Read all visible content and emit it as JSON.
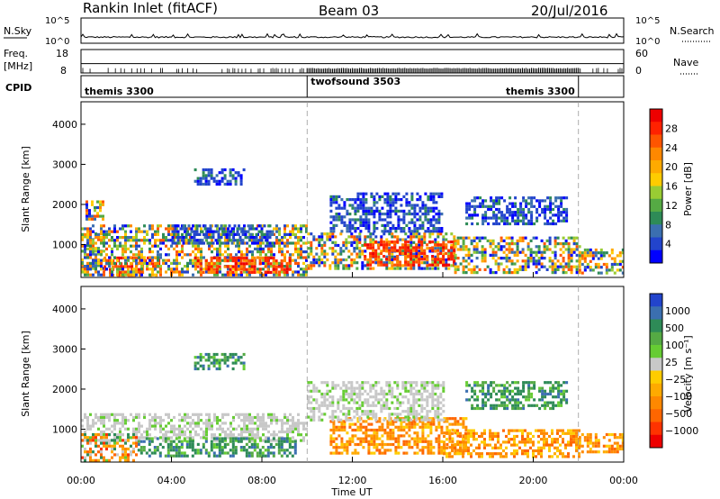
{
  "header": {
    "station": "Rankin Inlet (fitACF)",
    "beam": "Beam 03",
    "date": "20/Jul/2016"
  },
  "noise_panel": {
    "left_label": "N.Sky",
    "right_label": "N.Search",
    "ticks": [
      "10^5",
      "10^0"
    ],
    "right_legend_style": "dotted"
  },
  "freq_panel": {
    "left_label_line1": "Freq.",
    "left_label_line2": "[MHz]",
    "left_ticks": [
      "18",
      "8"
    ],
    "left_range": [
      8,
      18
    ],
    "right_label": "Nave",
    "right_ticks": [
      "60",
      "0"
    ],
    "right_range": [
      0,
      60
    ],
    "right_legend_style": "dotted"
  },
  "cpid_panel": {
    "label": "CPID",
    "segments": [
      {
        "name": "themis 3300",
        "start_hour": 0,
        "end_hour": 10
      },
      {
        "name": "twofsound 3503",
        "start_hour": 10,
        "end_hour": 22
      },
      {
        "name": "themis 3300",
        "start_hour": 22,
        "end_hour": 24
      }
    ]
  },
  "time_axis": {
    "label": "Time UT",
    "ticks": [
      "00:00",
      "04:00",
      "08:00",
      "12:00",
      "16:00",
      "20:00",
      "00:00"
    ],
    "range_hours": [
      0,
      24
    ]
  },
  "chart_data": [
    {
      "type": "heatmap",
      "parameter": "power",
      "ylabel": "Slant Range [km]",
      "yticks": [
        1000,
        2000,
        3000,
        4000
      ],
      "ylim": [
        180,
        4560
      ],
      "x_range_hours": [
        0,
        24
      ],
      "mode_change_hours": [
        10,
        22
      ],
      "colorbar": {
        "label": "Power [dB]",
        "ticks": [
          "4",
          "8",
          "12",
          "16",
          "20",
          "24",
          "28"
        ],
        "colors": [
          "#0000ff",
          "#2244cc",
          "#3b6fb0",
          "#2e8b57",
          "#55aa44",
          "#99cc33",
          "#ffcc00",
          "#ffaa00",
          "#ff8800",
          "#ff5500",
          "#ff2200",
          "#ee0000"
        ],
        "range": [
          0,
          30
        ]
      },
      "regions": [
        {
          "hours": [
            0,
            1.0
          ],
          "range_km": [
            400,
            1300
          ],
          "level": "mixed"
        },
        {
          "hours": [
            0.2,
            1.0
          ],
          "range_km": [
            1600,
            2100
          ],
          "level": "mixed"
        },
        {
          "hours": [
            1.0,
            3.5
          ],
          "range_km": [
            250,
            700
          ],
          "level": "high"
        },
        {
          "hours": [
            0,
            10
          ],
          "range_km": [
            250,
            1500
          ],
          "level": "mixed"
        },
        {
          "hours": [
            5.0,
            7.2
          ],
          "range_km": [
            2500,
            2900
          ],
          "level": "low"
        },
        {
          "hours": [
            5.0,
            9.2
          ],
          "range_km": [
            300,
            700
          ],
          "level": "high"
        },
        {
          "hours": [
            4.0,
            8.5
          ],
          "range_km": [
            1000,
            1500
          ],
          "level": "low"
        },
        {
          "hours": [
            10,
            16.5
          ],
          "range_km": [
            400,
            1300
          ],
          "level": "mixed"
        },
        {
          "hours": [
            12.5,
            16.5
          ],
          "range_km": [
            500,
            1100
          ],
          "level": "high"
        },
        {
          "hours": [
            11,
            16
          ],
          "range_km": [
            1300,
            2300
          ],
          "level": "low"
        },
        {
          "hours": [
            16.5,
            22
          ],
          "range_km": [
            300,
            1200
          ],
          "level": "mixed"
        },
        {
          "hours": [
            17,
            21.5
          ],
          "range_km": [
            1500,
            2200
          ],
          "level": "low"
        },
        {
          "hours": [
            22,
            24
          ],
          "range_km": [
            300,
            900
          ],
          "level": "mixed"
        }
      ]
    },
    {
      "type": "heatmap",
      "parameter": "velocity",
      "ylabel": "Slant Range [km]",
      "yticks": [
        1000,
        2000,
        3000,
        4000
      ],
      "ylim": [
        180,
        4560
      ],
      "x_range_hours": [
        0,
        24
      ],
      "mode_change_hours": [
        10,
        22
      ],
      "colorbar": {
        "label": "Velocity [m s⁻¹]",
        "ticks": [
          "1000",
          "500",
          "100",
          "25",
          "−25",
          "−100",
          "−500",
          "−1000"
        ],
        "colors": [
          "#2244cc",
          "#3b6fb0",
          "#2e8b57",
          "#55aa44",
          "#66cc33",
          "#c8c8c8",
          "#ffcc00",
          "#ffaa00",
          "#ff8800",
          "#ff6600",
          "#ff3300",
          "#ee0000"
        ],
        "range": [
          -1200,
          1200
        ]
      },
      "regions": [
        {
          "hours": [
            0,
            10
          ],
          "range_km": [
            700,
            1400
          ],
          "level": "gray"
        },
        {
          "hours": [
            2.5,
            9.5
          ],
          "range_km": [
            300,
            800
          ],
          "level": "green"
        },
        {
          "hours": [
            0,
            2.5
          ],
          "range_km": [
            250,
            900
          ],
          "level": "mixed"
        },
        {
          "hours": [
            5.0,
            7.2
          ],
          "range_km": [
            2500,
            2900
          ],
          "level": "green"
        },
        {
          "hours": [
            11,
            17
          ],
          "range_km": [
            400,
            1300
          ],
          "level": "orange"
        },
        {
          "hours": [
            16,
            22
          ],
          "range_km": [
            300,
            1000
          ],
          "level": "orange"
        },
        {
          "hours": [
            10,
            16
          ],
          "range_km": [
            1200,
            2200
          ],
          "level": "gray"
        },
        {
          "hours": [
            17,
            21.5
          ],
          "range_km": [
            1500,
            2200
          ],
          "level": "green"
        },
        {
          "hours": [
            22,
            24
          ],
          "range_km": [
            400,
            900
          ],
          "level": "orange"
        }
      ]
    }
  ]
}
